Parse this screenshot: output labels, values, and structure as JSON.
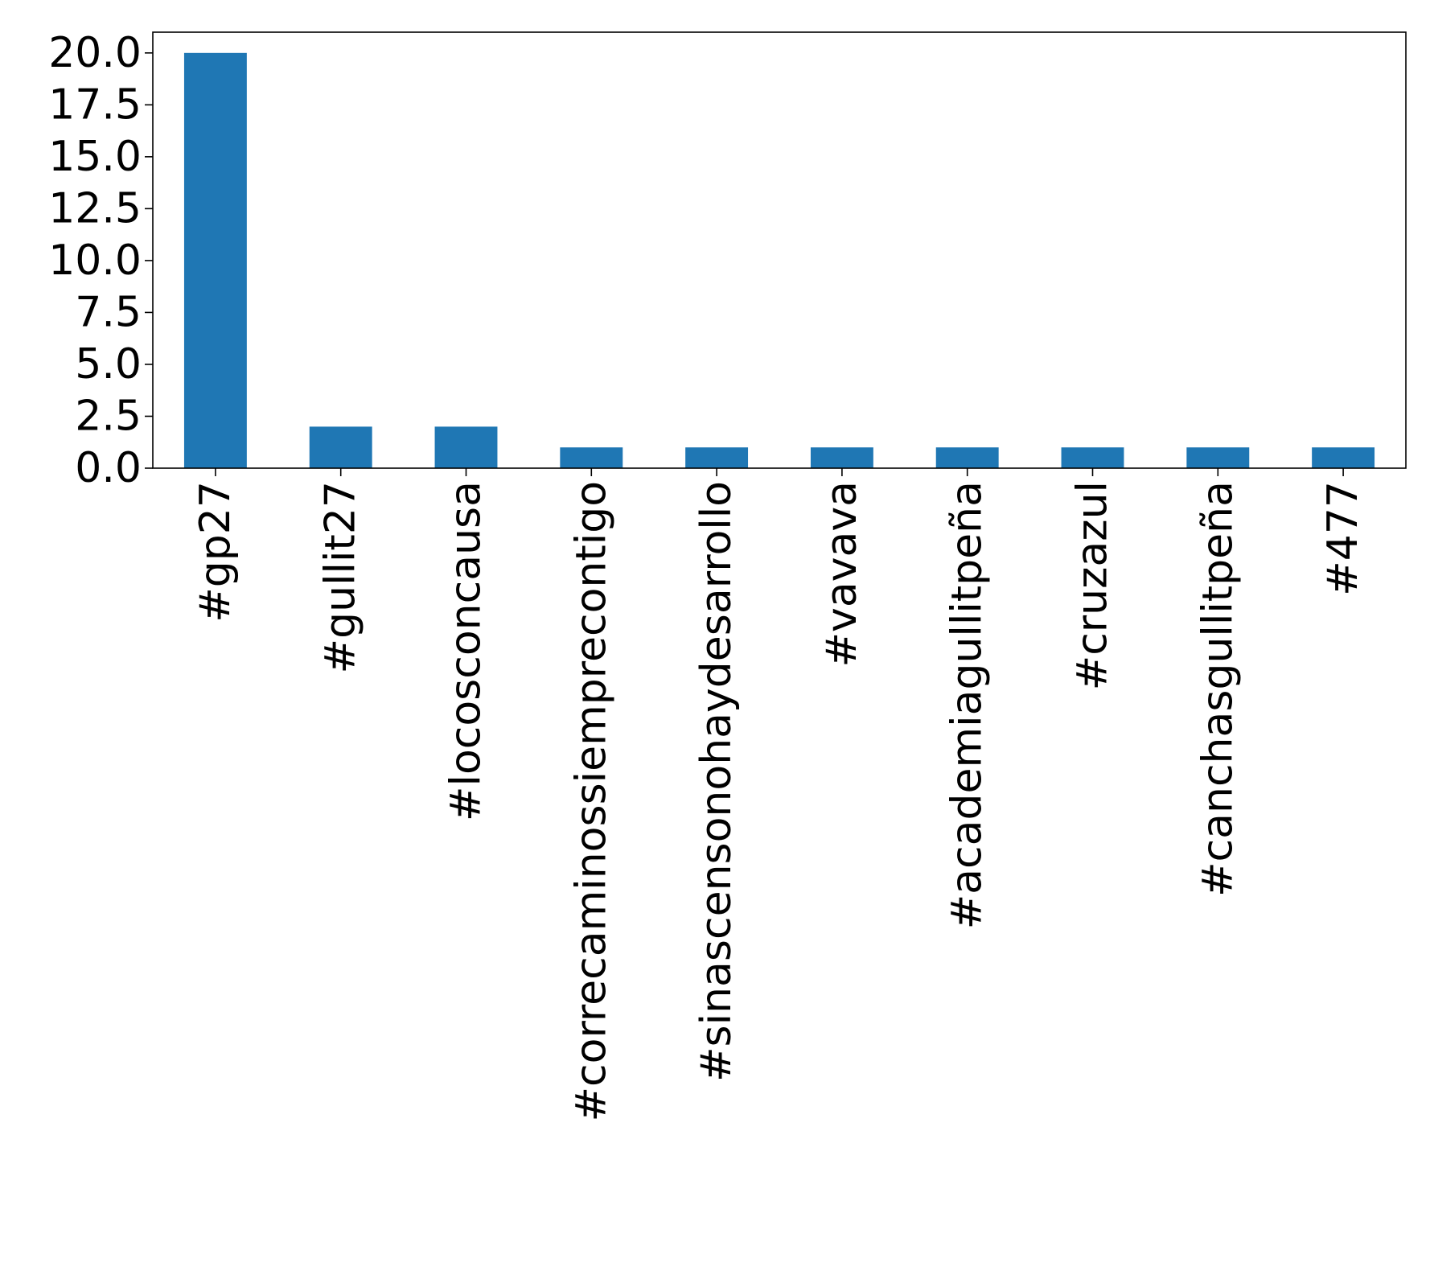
{
  "chart_data": {
    "type": "bar",
    "title": "",
    "xlabel": "",
    "ylabel": "",
    "categories": [
      "#gp27",
      "#gullit27",
      "#locosconcausa",
      "#correcaminossiemprecontigo",
      "#sinascensonohaydesarrollo",
      "#vavava",
      "#academiagullitpeña",
      "#cruzazul",
      "#canchasgullitpeña",
      "#477"
    ],
    "values": [
      20,
      2,
      2,
      1,
      1,
      1,
      1,
      1,
      1,
      1
    ],
    "ylim": [
      0,
      21
    ],
    "yticks": [
      "0.0",
      "2.5",
      "5.0",
      "7.5",
      "10.0",
      "12.5",
      "15.0",
      "17.5",
      "20.0"
    ],
    "grid": false,
    "legend": "none",
    "colors": {
      "bar": "#1f77b4",
      "axes": "#000000",
      "background": "#ffffff"
    }
  }
}
